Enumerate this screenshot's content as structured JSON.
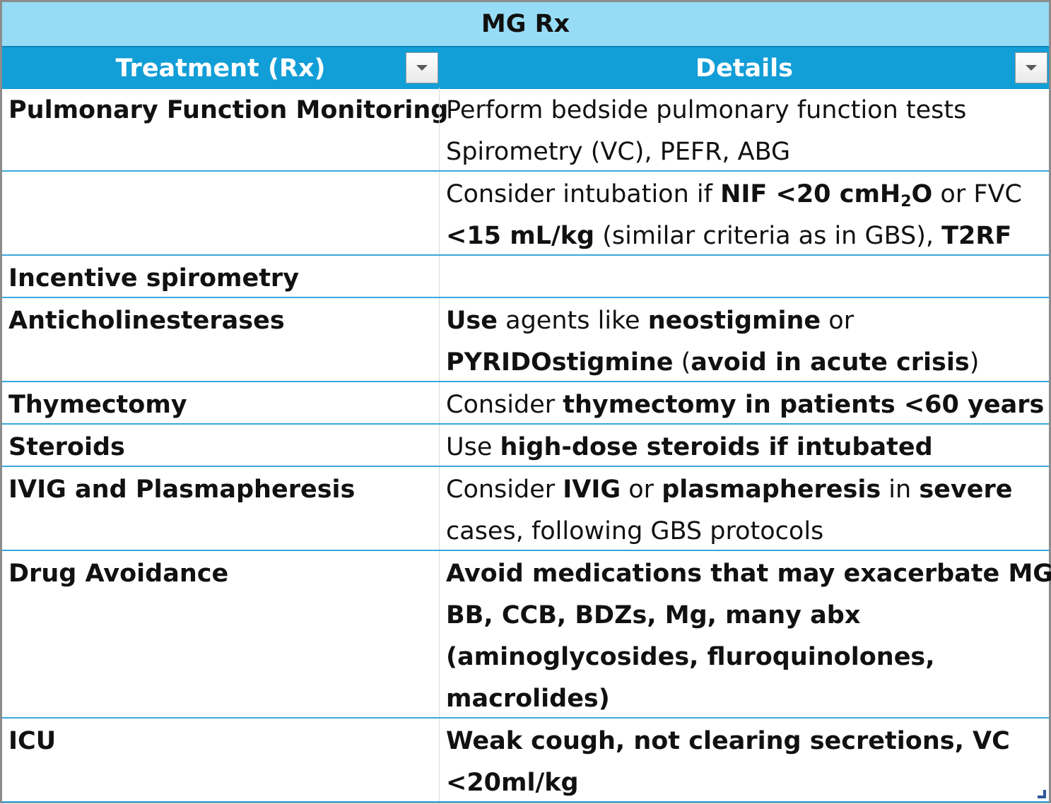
{
  "table": {
    "title": "MG Rx",
    "columns": [
      "Treatment (Rx)",
      "Details"
    ],
    "rows": [
      {
        "treatment": "Pulmonary Function Monitoring",
        "details": [
          [
            {
              "t": "Perform bedside pulmonary function tests"
            }
          ],
          [
            {
              "t": "Spirometry (VC), PEFR, ABG"
            }
          ]
        ]
      },
      {
        "treatment": "",
        "details": [
          [
            {
              "t": "Consider intubation if "
            },
            {
              "t": "NIF <20 cmH",
              "b": true
            },
            {
              "t": "2",
              "b": true,
              "sub": true
            },
            {
              "t": "O",
              "b": true
            },
            {
              "t": " or FVC"
            }
          ],
          [
            {
              "t": "<15 mL/kg",
              "b": true
            },
            {
              "t": " (similar criteria as in GBS), "
            },
            {
              "t": "T2RF",
              "b": true
            }
          ]
        ]
      },
      {
        "treatment": "Incentive spirometry",
        "details": [
          []
        ]
      },
      {
        "treatment": "Anticholinesterases",
        "details": [
          [
            {
              "t": "Use",
              "b": true
            },
            {
              "t": " agents like "
            },
            {
              "t": "neostigmine",
              "b": true
            },
            {
              "t": " or"
            }
          ],
          [
            {
              "t": "PYRIDOstigmine",
              "b": true
            },
            {
              "t": " ("
            },
            {
              "t": "avoid in acute crisis",
              "b": true
            },
            {
              "t": ")"
            }
          ]
        ]
      },
      {
        "treatment": "Thymectomy",
        "details": [
          [
            {
              "t": "Consider "
            },
            {
              "t": "thymectomy in patients <60 years",
              "b": true
            }
          ]
        ]
      },
      {
        "treatment": "Steroids",
        "details": [
          [
            {
              "t": "Use "
            },
            {
              "t": "high-dose steroids if intubated",
              "b": true
            }
          ]
        ]
      },
      {
        "treatment": "IVIG and Plasmapheresis",
        "details": [
          [
            {
              "t": "Consider "
            },
            {
              "t": "IVIG",
              "b": true
            },
            {
              "t": " or "
            },
            {
              "t": "plasmapheresis",
              "b": true
            },
            {
              "t": " in "
            },
            {
              "t": "severe",
              "b": true
            }
          ],
          [
            {
              "t": "cases, following GBS protocols"
            }
          ]
        ]
      },
      {
        "treatment": "Drug Avoidance",
        "details": [
          [
            {
              "t": "Avoid medications that may exacerbate MG",
              "b": true
            }
          ],
          [
            {
              "t": "BB, CCB, BDZs, Mg, many abx",
              "b": true
            }
          ],
          [
            {
              "t": "(aminoglycosides, fluroquinolones,",
              "b": true
            }
          ],
          [
            {
              "t": "macrolides)",
              "b": true
            }
          ]
        ]
      },
      {
        "treatment": "ICU",
        "details": [
          [
            {
              "t": "Weak cough, not clearing secretions, VC",
              "b": true
            }
          ],
          [
            {
              "t": "<20ml/kg",
              "b": true
            }
          ]
        ]
      }
    ]
  }
}
